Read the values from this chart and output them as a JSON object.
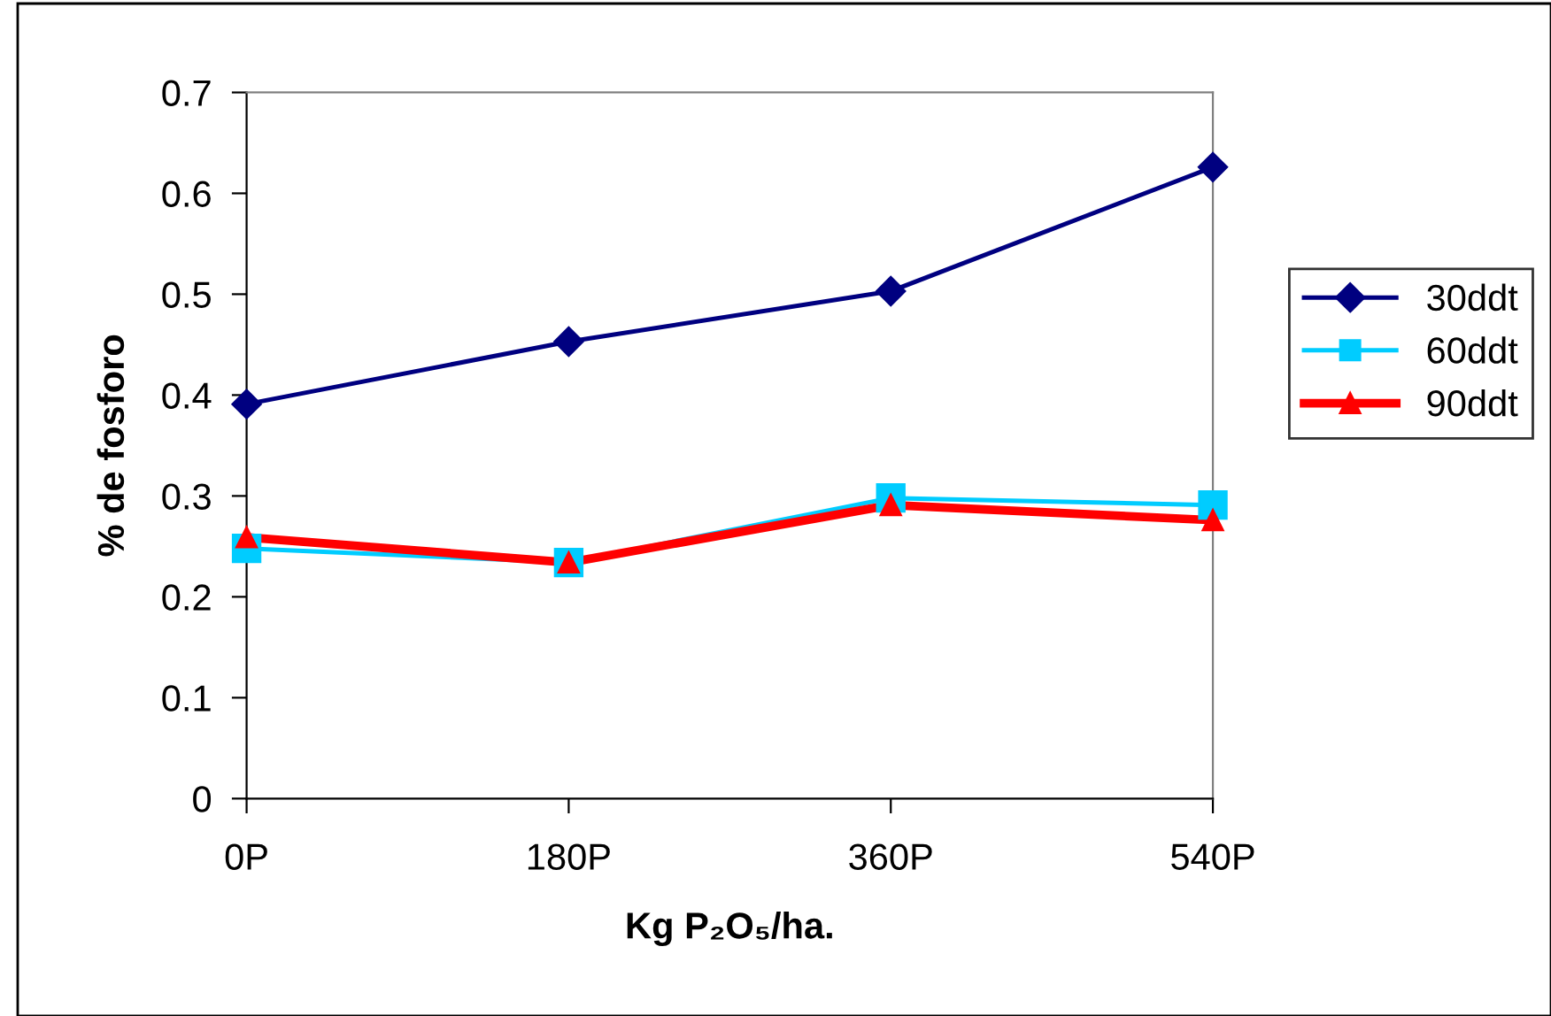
{
  "chart_data": {
    "type": "line",
    "xlabel": "Kg P₂O₅/ha.",
    "ylabel": "% de fosforo",
    "categories": [
      "0P",
      "180P",
      "360P",
      "540P"
    ],
    "series": [
      {
        "name": "30ddt",
        "color": "#000080",
        "marker": "diamond",
        "values": [
          0.391,
          0.453,
          0.503,
          0.626
        ]
      },
      {
        "name": "60ddt",
        "color": "#00ccff",
        "marker": "square",
        "values": [
          0.248,
          0.234,
          0.298,
          0.291
        ]
      },
      {
        "name": "90ddt",
        "color": "#ff0000",
        "marker": "triangle",
        "values": [
          0.259,
          0.234,
          0.291,
          0.276
        ]
      }
    ],
    "ylim": [
      0,
      0.7
    ],
    "yticks": [
      0,
      0.1,
      0.2,
      0.3,
      0.4,
      0.5,
      0.6,
      0.7
    ],
    "grid": false,
    "legend": "right",
    "line_style": "solid"
  }
}
